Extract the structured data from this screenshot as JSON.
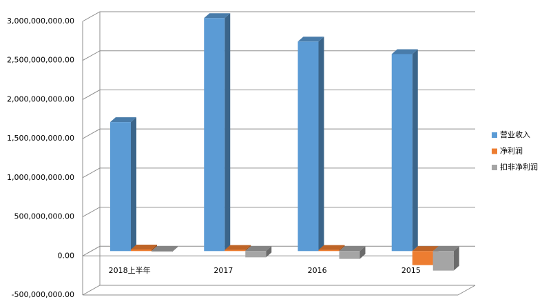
{
  "chart_data": {
    "type": "bar3d",
    "categories": [
      "2018上半年",
      "2017",
      "2016",
      "2015"
    ],
    "series": [
      {
        "name": "营业收入",
        "color": "#5b9bd5",
        "values": [
          1650000000,
          2980000000,
          2680000000,
          2520000000
        ]
      },
      {
        "name": "净利润",
        "color": "#ed7d31",
        "values": [
          20000000,
          15000000,
          15000000,
          -180000000
        ]
      },
      {
        "name": "扣非净利润",
        "color": "#a5a5a5",
        "values": [
          -10000000,
          -80000000,
          -100000000,
          -250000000
        ]
      }
    ],
    "ylim": [
      -500000000,
      3000000000
    ],
    "yticks": [
      {
        "value": -500000000,
        "label": "-500,000,000.00"
      },
      {
        "value": 0,
        "label": "0.00"
      },
      {
        "value": 500000000,
        "label": "500,000,000.00"
      },
      {
        "value": 1000000000,
        "label": "1,000,000,000.00"
      },
      {
        "value": 1500000000,
        "label": "1,500,000,000.00"
      },
      {
        "value": 2000000000,
        "label": "2,000,000,000.00"
      },
      {
        "value": 2500000000,
        "label": "2,500,000,000.00"
      },
      {
        "value": 3000000000,
        "label": "3,000,000,000.00"
      }
    ],
    "grid": true,
    "legend": "right"
  }
}
